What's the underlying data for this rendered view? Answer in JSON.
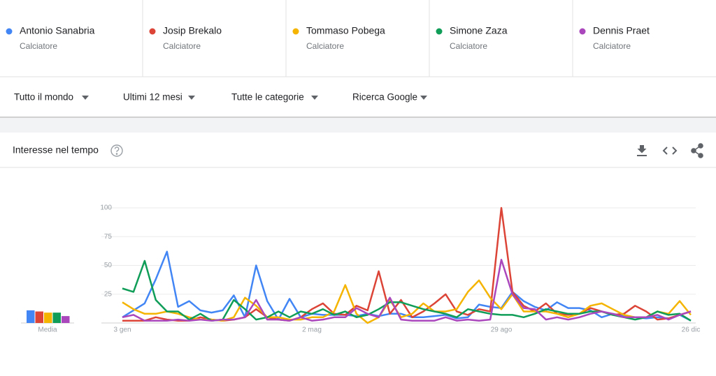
{
  "filters": [
    "Tutto il mondo",
    "Ultimi 12 mesi",
    "Tutte le categorie",
    "Ricerca Google"
  ],
  "panel": {
    "title": "Interesse nel tempo"
  },
  "chart_data": {
    "type": "line",
    "categories": [
      "3 gen",
      null,
      null,
      null,
      null,
      null,
      null,
      null,
      null,
      null,
      null,
      null,
      null,
      null,
      null,
      null,
      null,
      "2 mag",
      null,
      null,
      null,
      null,
      null,
      null,
      null,
      null,
      null,
      null,
      null,
      null,
      null,
      null,
      null,
      null,
      "29 ago",
      null,
      null,
      null,
      null,
      null,
      null,
      null,
      null,
      null,
      null,
      null,
      null,
      null,
      null,
      null,
      null,
      "26 dic"
    ],
    "series": [
      {
        "name": "Antonio Sanabria",
        "subtitle": "Calciatore",
        "color": "#4285f4",
        "average": 11,
        "values": [
          5,
          11,
          17,
          38,
          62,
          14,
          19,
          11,
          9,
          11,
          24,
          5,
          50,
          19,
          3,
          21,
          5,
          8,
          7,
          7,
          7,
          6,
          8,
          6,
          8,
          8,
          5,
          5,
          6,
          7,
          4,
          5,
          16,
          14,
          13,
          27,
          19,
          14,
          11,
          18,
          13,
          13,
          11,
          5,
          8,
          6,
          5,
          4,
          5,
          4,
          7,
          2
        ]
      },
      {
        "name": "Josip Brekalo",
        "subtitle": "Calciatore",
        "color": "#db4437",
        "average": 10,
        "values": [
          2,
          2,
          2,
          5,
          3,
          2,
          2,
          5,
          3,
          2,
          3,
          5,
          12,
          5,
          3,
          2,
          5,
          12,
          17,
          8,
          7,
          15,
          11,
          45,
          8,
          20,
          5,
          10,
          17,
          25,
          10,
          7,
          12,
          10,
          100,
          27,
          15,
          10,
          17,
          8,
          7,
          8,
          13,
          10,
          7,
          8,
          15,
          10,
          3,
          4,
          7,
          10
        ]
      },
      {
        "name": "Tommaso Pobega",
        "subtitle": "Calciatore",
        "color": "#f4b400",
        "average": 9,
        "values": [
          18,
          12,
          8,
          8,
          10,
          8,
          5,
          3,
          3,
          2,
          5,
          22,
          15,
          5,
          5,
          3,
          3,
          5,
          5,
          10,
          33,
          8,
          0,
          5,
          20,
          5,
          8,
          17,
          10,
          10,
          12,
          27,
          37,
          22,
          12,
          25,
          10,
          10,
          10,
          8,
          5,
          8,
          15,
          17,
          12,
          7,
          5,
          5,
          10,
          8,
          19,
          7
        ]
      },
      {
        "name": "Simone Zaza",
        "subtitle": "Calciatore",
        "color": "#0f9d58",
        "average": 9,
        "values": [
          30,
          27,
          54,
          20,
          10,
          10,
          3,
          8,
          2,
          3,
          20,
          12,
          3,
          5,
          10,
          5,
          10,
          8,
          12,
          7,
          10,
          5,
          7,
          12,
          18,
          18,
          15,
          12,
          10,
          8,
          5,
          12,
          10,
          8,
          7,
          7,
          5,
          8,
          12,
          10,
          8,
          8,
          10,
          10,
          7,
          5,
          3,
          5,
          10,
          7,
          8,
          2
        ]
      },
      {
        "name": "Dennis Praet",
        "subtitle": "Calciatore",
        "color": "#ab47bc",
        "average": 6,
        "values": [
          5,
          7,
          2,
          2,
          2,
          3,
          2,
          3,
          2,
          3,
          3,
          5,
          20,
          3,
          3,
          2,
          5,
          2,
          3,
          5,
          5,
          13,
          8,
          5,
          22,
          3,
          2,
          2,
          2,
          5,
          2,
          3,
          2,
          3,
          55,
          25,
          13,
          12,
          3,
          5,
          3,
          5,
          8,
          10,
          8,
          5,
          5,
          5,
          7,
          3,
          7,
          10
        ]
      }
    ],
    "average_label": "Media",
    "ylim": [
      0,
      100
    ],
    "yticks": [
      25,
      50,
      75,
      100
    ],
    "grid": true
  }
}
